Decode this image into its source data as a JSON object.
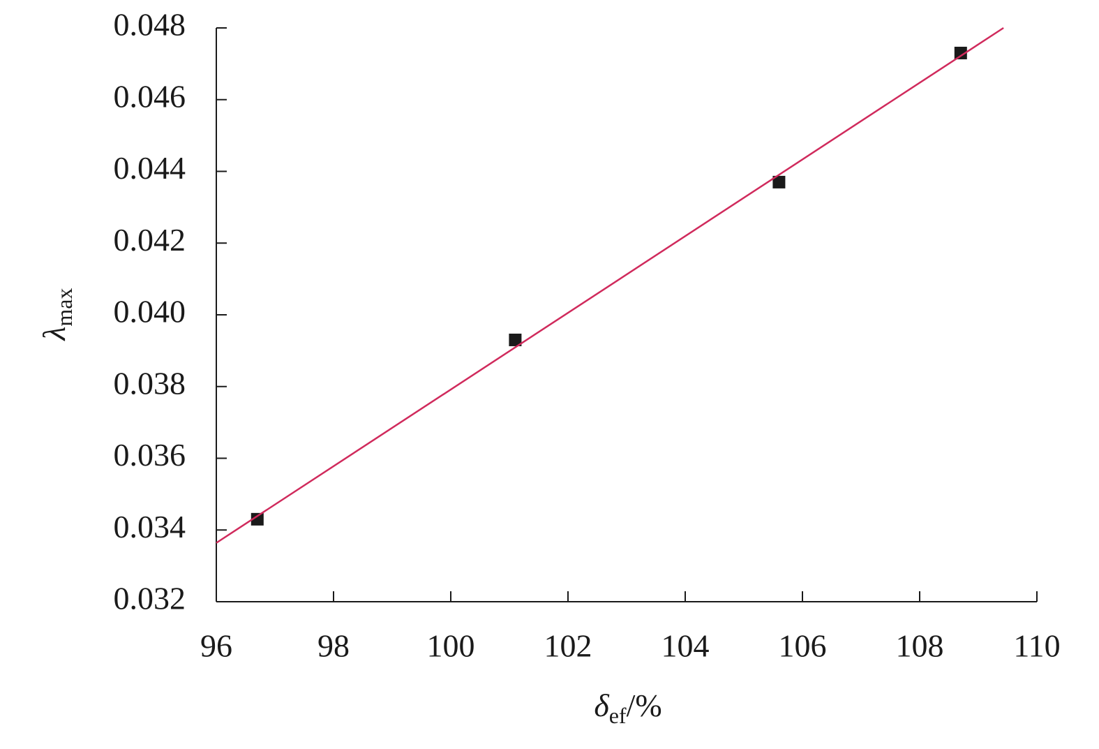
{
  "chart_data": {
    "type": "scatter",
    "xlabel": {
      "main": "δ",
      "sub": "ef",
      "suffix": "/%"
    },
    "ylabel": {
      "main": "λ",
      "sub": "max"
    },
    "xlim": [
      96,
      110
    ],
    "xticks": [
      96,
      98,
      100,
      102,
      104,
      106,
      108,
      110
    ],
    "ylim": [
      0.032,
      0.048
    ],
    "yticks": [
      0.032,
      0.034,
      0.036,
      0.038,
      {
        "value": 0.04,
        "label": "0.040"
      },
      0.042,
      0.044,
      0.046,
      0.048
    ],
    "grid": false,
    "series": [
      {
        "style": "markers",
        "color": "#1a1a1a",
        "x": [
          96.7,
          101.1,
          105.6,
          108.7
        ],
        "values": [
          0.0343,
          0.0393,
          0.0437,
          0.0473
        ]
      },
      {
        "style": "line",
        "color": "#d02a5c",
        "x": [
          96,
          109.43
        ],
        "values": [
          0.03364,
          0.048
        ]
      }
    ]
  }
}
